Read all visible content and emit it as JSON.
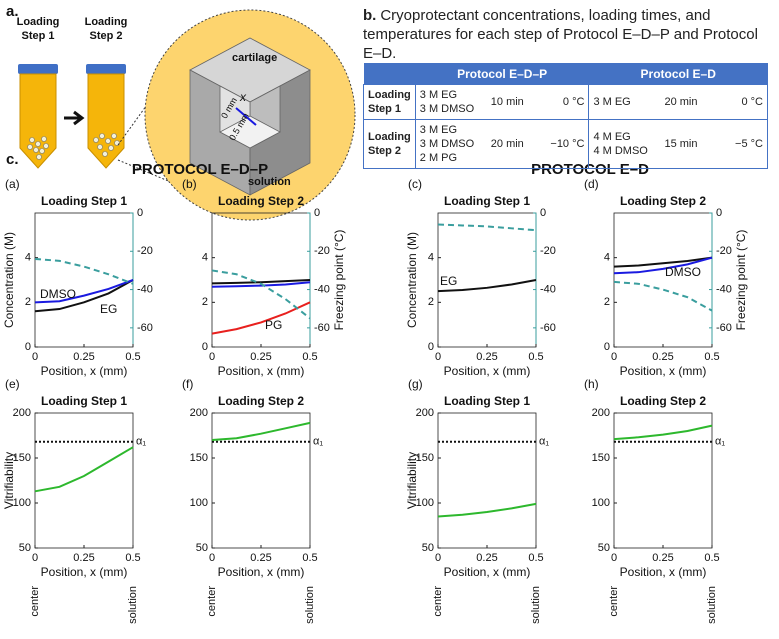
{
  "figure": {
    "panel_a": {
      "label": "a.",
      "tubes": [
        [
          "Loading",
          "Step 1"
        ],
        [
          "Loading",
          "Step 2"
        ]
      ],
      "cube_labels": {
        "top": "cartilage",
        "bottom": "solution",
        "axis": "x",
        "start": "0 mm",
        "end": "0.5 mm"
      }
    },
    "panel_b": {
      "label": "b.",
      "caption": "Cryoprotectant concentrations, loading times, and temperatures for each step of Protocol E–D–P and Protocol E–D.",
      "table": {
        "header": [
          "Protocol E–D–P",
          "Protocol E–D"
        ],
        "rows": [
          {
            "step": [
              "Loading",
              "Step 1"
            ],
            "edp": {
              "cpa": [
                "3 M EG",
                "3 M DMSO"
              ],
              "time": "10 min",
              "temp": "0 °C"
            },
            "ed": {
              "cpa": [
                "3 M EG"
              ],
              "time": "20 min",
              "temp": "0 °C"
            }
          },
          {
            "step": [
              "Loading",
              "Step 2"
            ],
            "edp": {
              "cpa": [
                "3 M EG",
                "3 M DMSO",
                "2 M PG"
              ],
              "time": "20 min",
              "temp": "−10 °C"
            },
            "ed": {
              "cpa": [
                "4 M EG",
                "4 M DMSO"
              ],
              "time": "15 min",
              "temp": "−5 °C"
            }
          }
        ]
      }
    },
    "panel_c": {
      "label": "c.",
      "headers": [
        "PROTOCOL E–D–P",
        "PROTOCOL E–D"
      ]
    }
  },
  "chart_data": [
    {
      "type": "line",
      "panel_label": "(a)",
      "title": "Loading Step 1",
      "x": [
        0,
        0.125,
        0.25,
        0.375,
        0.5
      ],
      "xlim": [
        0,
        0.5
      ],
      "xticks": [
        0,
        0.25,
        0.5
      ],
      "xlabel": "Position, x (mm)",
      "ylim": [
        0,
        6
      ],
      "yticks": [
        0,
        2,
        4
      ],
      "ylabel": "Concentration (M)",
      "y2lim": [
        -70,
        0
      ],
      "y2ticks": [
        0,
        -20,
        -40,
        -60
      ],
      "y2color": "#3a9e9e",
      "series": [
        {
          "name": "EG",
          "color": "#111111",
          "values": [
            1.6,
            1.7,
            2.0,
            2.4,
            3.0
          ]
        },
        {
          "name": "DMSO",
          "color": "#1a1ae0",
          "values": [
            2.0,
            2.05,
            2.3,
            2.6,
            3.0
          ]
        },
        {
          "color": "#3a9e9e",
          "dashed": true,
          "axis": "y2",
          "values": [
            -24,
            -25,
            -28,
            -32,
            -37
          ]
        }
      ]
    },
    {
      "type": "line",
      "panel_label": "(b)",
      "title": "Loading Step 2",
      "x": [
        0,
        0.125,
        0.25,
        0.375,
        0.5
      ],
      "xlim": [
        0,
        0.5
      ],
      "xticks": [
        0,
        0.25,
        0.5
      ],
      "xlabel": "Position, x (mm)",
      "ylim": [
        0,
        6
      ],
      "yticks": [
        0,
        2,
        4
      ],
      "y2lim": [
        -70,
        0
      ],
      "y2ticks": [
        0,
        -20,
        -40,
        -60
      ],
      "y2label": "Freezing point (°C)",
      "y2color": "#3a9e9e",
      "series": [
        {
          "color": "#111111",
          "values": [
            2.85,
            2.87,
            2.9,
            2.95,
            3.0
          ]
        },
        {
          "color": "#1a1ae0",
          "values": [
            2.7,
            2.72,
            2.75,
            2.8,
            2.9
          ]
        },
        {
          "name": "PG",
          "color": "#e8201e",
          "values": [
            0.6,
            0.8,
            1.1,
            1.5,
            2.0
          ]
        },
        {
          "color": "#3a9e9e",
          "dashed": true,
          "axis": "y2",
          "values": [
            -30,
            -32,
            -37,
            -45,
            -55
          ]
        }
      ]
    },
    {
      "type": "line",
      "panel_label": "(c)",
      "title": "Loading Step 1",
      "x": [
        0,
        0.125,
        0.25,
        0.375,
        0.5
      ],
      "xlim": [
        0,
        0.5
      ],
      "xticks": [
        0,
        0.25,
        0.5
      ],
      "xlabel": "Position, x (mm)",
      "ylim": [
        0,
        6
      ],
      "yticks": [
        0,
        2,
        4
      ],
      "ylabel": "Concentration (M)",
      "y2lim": [
        -70,
        0
      ],
      "y2ticks": [
        0,
        -20,
        -40,
        -60
      ],
      "y2color": "#3a9e9e",
      "series": [
        {
          "name": "EG",
          "color": "#111111",
          "values": [
            2.5,
            2.55,
            2.65,
            2.8,
            3.0
          ]
        },
        {
          "color": "#3a9e9e",
          "dashed": true,
          "axis": "y2",
          "values": [
            -6,
            -6.5,
            -7,
            -8,
            -9
          ]
        }
      ]
    },
    {
      "type": "line",
      "panel_label": "(d)",
      "title": "Loading Step 2",
      "x": [
        0,
        0.125,
        0.25,
        0.375,
        0.5
      ],
      "xlim": [
        0,
        0.5
      ],
      "xticks": [
        0,
        0.25,
        0.5
      ],
      "xlabel": "Position, x (mm)",
      "ylim": [
        0,
        6
      ],
      "yticks": [
        0,
        2,
        4
      ],
      "y2lim": [
        -70,
        0
      ],
      "y2ticks": [
        0,
        -20,
        -40,
        -60
      ],
      "y2label": "Freezing point (°C)",
      "y2color": "#3a9e9e",
      "series": [
        {
          "color": "#111111",
          "values": [
            3.6,
            3.65,
            3.75,
            3.85,
            4.0
          ]
        },
        {
          "name": "DMSO",
          "color": "#1a1ae0",
          "values": [
            3.3,
            3.35,
            3.5,
            3.7,
            4.0
          ]
        },
        {
          "color": "#3a9e9e",
          "dashed": true,
          "axis": "y2",
          "values": [
            -36,
            -37,
            -40,
            -44,
            -51
          ]
        }
      ]
    },
    {
      "type": "line",
      "panel_label": "(e)",
      "title": "Loading Step 1",
      "x": [
        0,
        0.125,
        0.25,
        0.375,
        0.5
      ],
      "xlim": [
        0,
        0.5
      ],
      "xticks": [
        0,
        0.25,
        0.5
      ],
      "xlabel": "Position, x (mm)",
      "ylim": [
        50,
        200
      ],
      "yticks": [
        50,
        100,
        150,
        200
      ],
      "ylabel": "Vitrifiability",
      "reference_line": {
        "value": 168,
        "label": "α₁"
      },
      "x_end_labels": [
        "center",
        "solution"
      ],
      "series": [
        {
          "color": "#2db82d",
          "values": [
            113,
            118,
            130,
            146,
            162
          ]
        }
      ]
    },
    {
      "type": "line",
      "panel_label": "(f)",
      "title": "Loading Step 2",
      "x": [
        0,
        0.125,
        0.25,
        0.375,
        0.5
      ],
      "xlim": [
        0,
        0.5
      ],
      "xticks": [
        0,
        0.25,
        0.5
      ],
      "xlabel": "Position, x (mm)",
      "ylim": [
        50,
        200
      ],
      "yticks": [
        50,
        100,
        150,
        200
      ],
      "reference_line": {
        "value": 168,
        "label": "α₁"
      },
      "x_end_labels": [
        "center",
        "solution"
      ],
      "series": [
        {
          "color": "#2db82d",
          "values": [
            170,
            172,
            177,
            183,
            189
          ]
        }
      ]
    },
    {
      "type": "line",
      "panel_label": "(g)",
      "title": "Loading Step 1",
      "x": [
        0,
        0.125,
        0.25,
        0.375,
        0.5
      ],
      "xlim": [
        0,
        0.5
      ],
      "xticks": [
        0,
        0.25,
        0.5
      ],
      "xlabel": "Position, x (mm)",
      "ylim": [
        50,
        200
      ],
      "yticks": [
        50,
        100,
        150,
        200
      ],
      "ylabel": "Vitrifiability",
      "reference_line": {
        "value": 168,
        "label": "α₁"
      },
      "x_end_labels": [
        "center",
        "solution"
      ],
      "series": [
        {
          "color": "#2db82d",
          "values": [
            85,
            87,
            90,
            94,
            99
          ]
        }
      ]
    },
    {
      "type": "line",
      "panel_label": "(h)",
      "title": "Loading Step 2",
      "x": [
        0,
        0.125,
        0.25,
        0.375,
        0.5
      ],
      "xlim": [
        0,
        0.5
      ],
      "xticks": [
        0,
        0.25,
        0.5
      ],
      "xlabel": "Position, x (mm)",
      "ylim": [
        50,
        200
      ],
      "yticks": [
        50,
        100,
        150,
        200
      ],
      "reference_line": {
        "value": 168,
        "label": "α₁"
      },
      "x_end_labels": [
        "center",
        "solution"
      ],
      "series": [
        {
          "color": "#2db82d",
          "values": [
            171,
            173,
            176,
            180,
            186
          ]
        }
      ]
    }
  ]
}
